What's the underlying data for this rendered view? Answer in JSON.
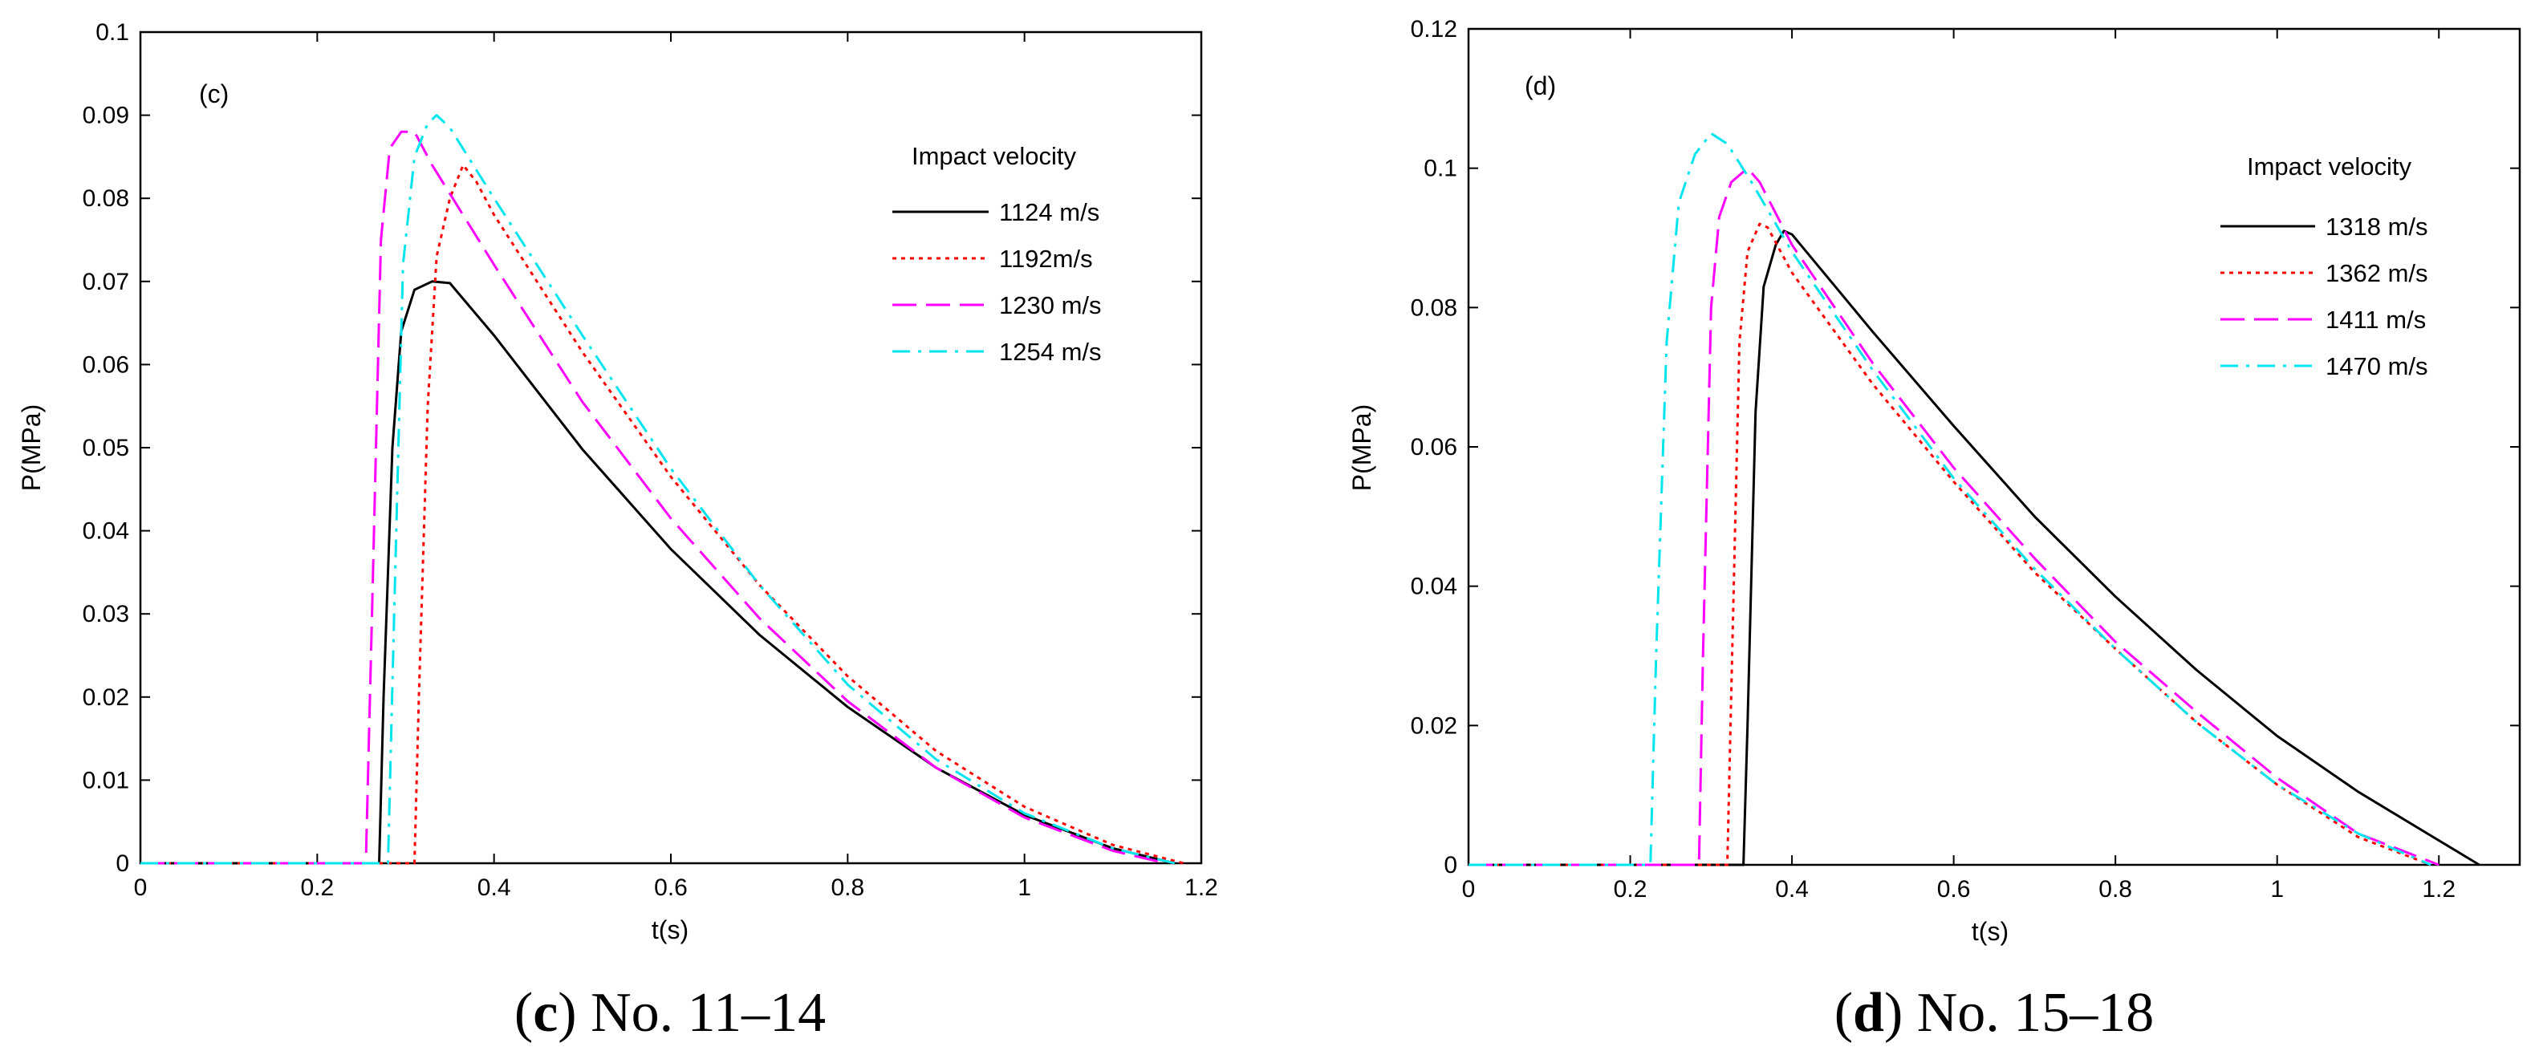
{
  "colors": {
    "black": "#000000",
    "red": "#ff0000",
    "magenta": "#ff00ff",
    "cyan": "#00e5ee"
  },
  "chart_data": [
    {
      "type": "line",
      "panel_tag": "(c)",
      "caption_letter": "c",
      "caption_rest": " No. 11–14",
      "caption_open": "(",
      "caption_close": ")",
      "xlabel": "t(s)",
      "ylabel": "P(MPa)",
      "xlim": [
        0,
        1.2
      ],
      "ylim": [
        0,
        0.1
      ],
      "xticks": [
        0,
        0.2,
        0.4,
        0.6,
        0.8,
        1,
        1.2
      ],
      "xtick_labels": [
        "0",
        "0.2",
        "0.4",
        "0.6",
        "0.8",
        "1",
        "1.2"
      ],
      "yticks": [
        0,
        0.01,
        0.02,
        0.03,
        0.04,
        0.05,
        0.06,
        0.07,
        0.08,
        0.09,
        0.1
      ],
      "ytick_labels": [
        "0",
        "0.01",
        "0.02",
        "0.03",
        "0.04",
        "0.05",
        "0.06",
        "0.07",
        "0.08",
        "0.09",
        "0.1"
      ],
      "legend_title": "Impact velocity",
      "legend_position": "top-right",
      "series": [
        {
          "name": "1124 m/s",
          "color": "#000000",
          "style": "solid",
          "x": [
            0,
            0.27,
            0.275,
            0.285,
            0.295,
            0.31,
            0.33,
            0.35,
            0.4,
            0.5,
            0.6,
            0.7,
            0.8,
            0.9,
            1.0,
            1.1,
            1.17
          ],
          "y": [
            0,
            0,
            0.02,
            0.05,
            0.064,
            0.069,
            0.07,
            0.0698,
            0.0635,
            0.0498,
            0.0378,
            0.0275,
            0.0188,
            0.0115,
            0.0058,
            0.0018,
            0
          ]
        },
        {
          "name": "1192m/s",
          "color": "#ff0000",
          "style": "dotted",
          "x": [
            0,
            0.31,
            0.315,
            0.325,
            0.335,
            0.35,
            0.365,
            0.38,
            0.4,
            0.5,
            0.6,
            0.7,
            0.8,
            0.9,
            1.0,
            1.1,
            1.18
          ],
          "y": [
            0,
            0,
            0.02,
            0.055,
            0.073,
            0.08,
            0.084,
            0.082,
            0.078,
            0.0615,
            0.0465,
            0.0335,
            0.0225,
            0.0135,
            0.0068,
            0.0022,
            0
          ]
        },
        {
          "name": "1230 m/s",
          "color": "#ff00ff",
          "style": "dashed",
          "x": [
            0,
            0.255,
            0.262,
            0.272,
            0.282,
            0.295,
            0.31,
            0.33,
            0.4,
            0.5,
            0.6,
            0.7,
            0.8,
            0.9,
            1.0,
            1.1,
            1.16
          ],
          "y": [
            0,
            0,
            0.03,
            0.075,
            0.086,
            0.088,
            0.088,
            0.084,
            0.072,
            0.0555,
            0.0415,
            0.0295,
            0.0195,
            0.0115,
            0.0055,
            0.0015,
            0
          ]
        },
        {
          "name": "1254 m/s",
          "color": "#00e5ee",
          "style": "dashdot",
          "x": [
            0,
            0.28,
            0.287,
            0.297,
            0.31,
            0.325,
            0.335,
            0.35,
            0.4,
            0.5,
            0.6,
            0.7,
            0.8,
            0.9,
            1.0,
            1.1,
            1.17
          ],
          "y": [
            0,
            0,
            0.03,
            0.072,
            0.085,
            0.089,
            0.09,
            0.0885,
            0.08,
            0.0635,
            0.0475,
            0.0335,
            0.0215,
            0.0125,
            0.006,
            0.0018,
            0
          ]
        }
      ]
    },
    {
      "type": "line",
      "panel_tag": "(d)",
      "caption_letter": "d",
      "caption_rest": " No. 15–18",
      "caption_open": "(",
      "caption_close": ")",
      "xlabel": "t(s)",
      "ylabel": "P(MPa)",
      "xlim": [
        0,
        1.3
      ],
      "ylim": [
        0,
        0.12
      ],
      "xticks": [
        0,
        0.2,
        0.4,
        0.6,
        0.8,
        1,
        1.2
      ],
      "xtick_labels": [
        "0",
        "0.2",
        "0.4",
        "0.6",
        "0.8",
        "1",
        "1.2"
      ],
      "yticks": [
        0,
        0.02,
        0.04,
        0.06,
        0.08,
        0.1,
        0.12
      ],
      "ytick_labels": [
        "0",
        "0.02",
        "0.04",
        "0.06",
        "0.08",
        "0.1",
        "0.12"
      ],
      "legend_title": "Impact velocity",
      "legend_position": "top-right",
      "series": [
        {
          "name": "1318 m/s",
          "color": "#000000",
          "style": "solid",
          "x": [
            0,
            0.34,
            0.345,
            0.355,
            0.365,
            0.38,
            0.39,
            0.4,
            0.45,
            0.5,
            0.6,
            0.7,
            0.8,
            0.9,
            1.0,
            1.1,
            1.2,
            1.25
          ],
          "y": [
            0,
            0,
            0.02,
            0.065,
            0.083,
            0.089,
            0.091,
            0.0905,
            0.0835,
            0.0765,
            0.063,
            0.05,
            0.0385,
            0.028,
            0.0185,
            0.0105,
            0.0035,
            0
          ]
        },
        {
          "name": "1362 m/s",
          "color": "#ff0000",
          "style": "dotted",
          "x": [
            0,
            0.32,
            0.325,
            0.335,
            0.345,
            0.36,
            0.37,
            0.4,
            0.5,
            0.6,
            0.7,
            0.8,
            0.9,
            1.0,
            1.1,
            1.19
          ],
          "y": [
            0,
            0,
            0.025,
            0.075,
            0.088,
            0.092,
            0.0915,
            0.085,
            0.069,
            0.055,
            0.042,
            0.031,
            0.0205,
            0.0115,
            0.004,
            0
          ]
        },
        {
          "name": "1411 m/s",
          "color": "#ff00ff",
          "style": "dashed",
          "x": [
            0,
            0.285,
            0.29,
            0.3,
            0.31,
            0.325,
            0.345,
            0.36,
            0.4,
            0.5,
            0.6,
            0.7,
            0.8,
            0.9,
            1.0,
            1.1,
            1.2
          ],
          "y": [
            0,
            0,
            0.03,
            0.08,
            0.093,
            0.098,
            0.1,
            0.098,
            0.089,
            0.072,
            0.057,
            0.044,
            0.032,
            0.022,
            0.0125,
            0.0045,
            0
          ]
        },
        {
          "name": "1470 m/s",
          "color": "#00e5ee",
          "style": "dashdot",
          "x": [
            0,
            0.225,
            0.232,
            0.245,
            0.26,
            0.28,
            0.3,
            0.32,
            0.35,
            0.4,
            0.5,
            0.6,
            0.7,
            0.8,
            0.9,
            1.0,
            1.1,
            1.19
          ],
          "y": [
            0,
            0,
            0.03,
            0.075,
            0.095,
            0.102,
            0.105,
            0.1035,
            0.098,
            0.088,
            0.071,
            0.0555,
            0.0425,
            0.031,
            0.0205,
            0.0115,
            0.0045,
            0
          ]
        }
      ]
    }
  ]
}
